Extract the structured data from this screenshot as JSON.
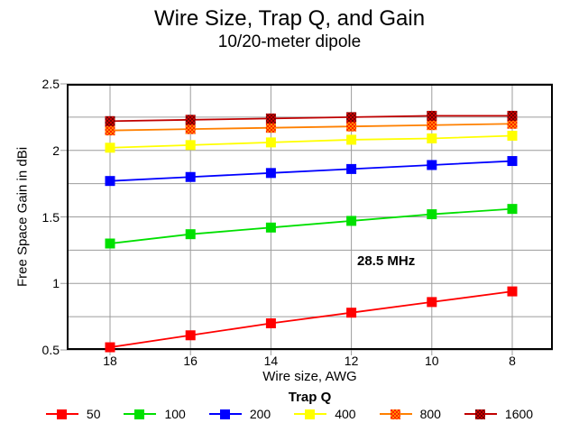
{
  "title": "Wire Size, Trap Q, and Gain",
  "subtitle": "10/20-meter dipole",
  "annotation": "28.5 MHz",
  "legend": {
    "title": "Trap Q",
    "position": "bottom"
  },
  "chart_data": {
    "type": "line",
    "title": "Wire Size, Trap Q, and Gain",
    "subtitle": "10/20-meter dipole",
    "xlabel": "Wire size, AWG",
    "ylabel": "Free Space Gain in dBi",
    "x_values": [
      18,
      16,
      14,
      12,
      10,
      8
    ],
    "x_axis_reversed": true,
    "ylim": [
      0.5,
      2.5
    ],
    "y_grid_step": 0.25,
    "y_ticks": [
      {
        "v": 0.5,
        "label": "0.5"
      },
      {
        "v": 1.0,
        "label": "1"
      },
      {
        "v": 1.5,
        "label": "1.5"
      },
      {
        "v": 2.0,
        "label": "2"
      },
      {
        "v": 2.5,
        "label": "2.5"
      }
    ],
    "grid": true,
    "grid_color": "#9c9c9c",
    "axis_color": "#000000",
    "annotation": {
      "text": "28.5 MHz",
      "near_x": 12,
      "near_y": 1.15
    },
    "legend_title": "Trap Q",
    "series": [
      {
        "name": "50",
        "color": "#ff0000",
        "values": [
          0.52,
          0.61,
          0.7,
          0.78,
          0.86,
          0.94
        ]
      },
      {
        "name": "100",
        "color": "#00e000",
        "values": [
          1.3,
          1.37,
          1.42,
          1.47,
          1.52,
          1.56
        ]
      },
      {
        "name": "200",
        "color": "#0000ff",
        "values": [
          1.77,
          1.8,
          1.83,
          1.86,
          1.89,
          1.92
        ]
      },
      {
        "name": "400",
        "color": "#ffff00",
        "values": [
          2.02,
          2.04,
          2.06,
          2.08,
          2.09,
          2.11
        ]
      },
      {
        "name": "800",
        "color": "#ff8000",
        "marker_pattern": [
          "#ff8c00",
          "#ff2000"
        ],
        "values": [
          2.15,
          2.16,
          2.17,
          2.18,
          2.19,
          2.2
        ]
      },
      {
        "name": "1600",
        "color": "#c00000",
        "marker_pattern": [
          "#cc0000",
          "#700000"
        ],
        "values": [
          2.22,
          2.23,
          2.24,
          2.25,
          2.26,
          2.26
        ]
      }
    ]
  }
}
